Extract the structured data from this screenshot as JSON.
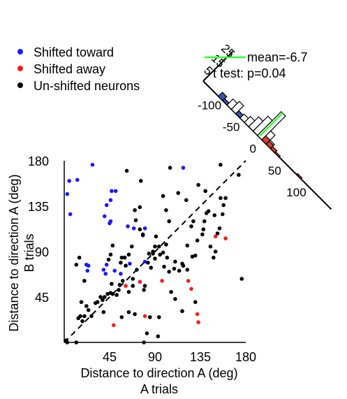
{
  "chart_data": {
    "type": "scatter",
    "xlabel_lines": [
      "Distance to direction A (deg)",
      "A trials"
    ],
    "ylabel_lines": [
      "Distance to direction A (deg)",
      "B trials"
    ],
    "xlim": [
      0,
      180
    ],
    "ylim": [
      0,
      180
    ],
    "x_ticks": [
      45,
      90,
      135,
      180
    ],
    "y_ticks": [
      45,
      90,
      135,
      180
    ],
    "diagonal": "dashed unity line",
    "legend": [
      {
        "label": "Shifted toward",
        "color": "#1a1aff"
      },
      {
        "label": "Shifted away",
        "color": "#ff1a1a"
      },
      {
        "label": "Un-shifted neurons",
        "color": "#000000"
      }
    ],
    "series": [
      {
        "color": "#1a1aff",
        "points": [
          [
            3,
            147
          ],
          [
            6,
            127
          ],
          [
            5,
            160
          ],
          [
            13,
            161
          ],
          [
            28,
            176
          ],
          [
            40,
            125
          ],
          [
            42,
            136
          ],
          [
            46,
            141
          ],
          [
            47,
            150
          ],
          [
            51,
            150
          ],
          [
            45,
            118
          ],
          [
            46,
            120
          ],
          [
            63,
            115
          ],
          [
            69,
            113
          ],
          [
            80,
            113
          ],
          [
            80,
            80
          ],
          [
            78,
            106
          ],
          [
            65,
            78
          ],
          [
            42,
            77
          ],
          [
            39,
            72
          ],
          [
            22,
            77
          ],
          [
            23,
            71
          ],
          [
            24,
            76
          ],
          [
            41,
            68
          ],
          [
            50,
            71
          ],
          [
            56,
            68
          ],
          [
            118,
            173
          ]
        ]
      },
      {
        "color": "#ff1a1a",
        "points": [
          [
            61,
            56
          ],
          [
            75,
            60
          ],
          [
            97,
            61
          ],
          [
            123,
            61
          ],
          [
            126,
            53
          ],
          [
            150,
            105
          ],
          [
            160,
            103
          ],
          [
            80,
            26
          ],
          [
            133,
            20
          ],
          [
            132,
            28
          ],
          [
            49,
            17
          ]
        ]
      },
      {
        "color": "#000000",
        "points": [
          [
            2,
            2
          ],
          [
            3,
            0
          ],
          [
            12,
            0
          ],
          [
            14,
            24
          ],
          [
            16,
            26
          ],
          [
            18,
            21
          ],
          [
            20,
            26
          ],
          [
            27,
            26
          ],
          [
            17,
            40
          ],
          [
            22,
            36
          ],
          [
            24,
            32
          ],
          [
            31,
            39
          ],
          [
            33,
            40
          ],
          [
            36,
            45
          ],
          [
            38,
            42
          ],
          [
            40,
            45
          ],
          [
            43,
            48
          ],
          [
            46,
            49
          ],
          [
            48,
            48
          ],
          [
            52,
            47
          ],
          [
            55,
            57
          ],
          [
            47,
            58
          ],
          [
            58,
            61
          ],
          [
            64,
            50
          ],
          [
            68,
            56
          ],
          [
            54,
            52
          ],
          [
            39,
            30
          ],
          [
            57,
            25
          ],
          [
            64,
            30
          ],
          [
            79,
            52
          ],
          [
            80,
            56
          ],
          [
            68,
            63
          ],
          [
            72,
            72
          ],
          [
            83,
            79
          ],
          [
            86,
            74
          ],
          [
            88,
            90
          ],
          [
            90,
            95
          ],
          [
            94,
            95
          ],
          [
            88,
            88
          ],
          [
            90,
            83
          ],
          [
            95,
            87
          ],
          [
            101,
            97
          ],
          [
            98,
            89
          ],
          [
            102,
            84
          ],
          [
            84,
            88
          ],
          [
            99,
            75
          ],
          [
            104,
            70
          ],
          [
            110,
            80
          ],
          [
            109,
            73
          ],
          [
            114,
            71
          ],
          [
            117,
            78
          ],
          [
            122,
            96
          ],
          [
            126,
            115
          ],
          [
            128,
            120
          ],
          [
            132,
            101
          ],
          [
            137,
            107
          ],
          [
            138,
            112
          ],
          [
            139,
            120
          ],
          [
            141,
            128
          ],
          [
            143,
            130
          ],
          [
            149,
            126
          ],
          [
            152,
            108
          ],
          [
            154,
            113
          ],
          [
            157,
            127
          ],
          [
            158,
            136
          ],
          [
            160,
            143
          ],
          [
            150,
            90
          ],
          [
            148,
            84
          ],
          [
            145,
            95
          ],
          [
            130,
            86
          ],
          [
            127,
            85
          ],
          [
            118,
            76
          ],
          [
            122,
            72
          ],
          [
            117,
            31
          ],
          [
            130,
            40
          ],
          [
            104,
            120
          ],
          [
            91,
            105
          ],
          [
            78,
            107
          ],
          [
            75,
            112
          ],
          [
            71,
            121
          ],
          [
            70,
            131
          ],
          [
            75,
            134
          ],
          [
            67,
            95
          ],
          [
            64,
            87
          ],
          [
            60,
            84
          ],
          [
            61,
            76
          ],
          [
            56,
            79
          ],
          [
            57,
            84
          ],
          [
            48,
            96
          ],
          [
            46,
            87
          ],
          [
            44,
            82
          ],
          [
            98,
            145
          ],
          [
            101,
            131
          ],
          [
            113,
            148
          ],
          [
            121,
            141
          ],
          [
            140,
            150
          ],
          [
            155,
            143
          ],
          [
            133,
            156
          ],
          [
            76,
            160
          ],
          [
            62,
            170
          ],
          [
            105,
            173
          ],
          [
            155,
            176
          ],
          [
            173,
            166
          ],
          [
            176,
            63
          ],
          [
            20,
            61
          ],
          [
            12,
            77
          ],
          [
            15,
            84
          ],
          [
            94,
            25
          ],
          [
            93,
            6
          ],
          [
            79,
            0
          ],
          [
            82,
            9
          ],
          [
            70,
            28
          ],
          [
            85,
            25
          ],
          [
            106,
            50
          ],
          [
            110,
            43
          ]
        ]
      }
    ],
    "histogram": {
      "orientation": "rotated along the unity diagonal",
      "count_ticks": [
        5,
        15,
        25
      ],
      "bin_ticks": [
        -100,
        -50,
        0,
        50,
        100
      ],
      "bins": [
        {
          "center": -95,
          "count": 4,
          "color": "#3f51b5"
        },
        {
          "center": -85,
          "count": 2,
          "color": "#3f51b5"
        },
        {
          "center": -75,
          "count": 2,
          "color": "#3f51b5"
        },
        {
          "center": -65,
          "count": 3,
          "color": "#3f51b5"
        },
        {
          "center": -55,
          "count": 3,
          "color": "#3f51b5"
        },
        {
          "center": -45,
          "count": 3,
          "color": "#3f51b5"
        },
        {
          "center": -35,
          "count": 3,
          "color": "#3f51b5"
        },
        {
          "center": -25,
          "count": 5,
          "color": "#3f51b5"
        },
        {
          "center": -15,
          "count": 5,
          "color": "#3f51b5"
        },
        {
          "center": -75,
          "count": 6,
          "color": "#ffffff"
        },
        {
          "center": -65,
          "count": 8,
          "color": "#ffffff"
        },
        {
          "center": -45,
          "count": 4,
          "color": "#ffffff"
        },
        {
          "center": -35,
          "count": 6,
          "color": "#ffffff"
        },
        {
          "center": -25,
          "count": 10,
          "color": "#ffffff"
        },
        {
          "center": -15,
          "count": 15,
          "color": "#ffffff"
        },
        {
          "center": -5,
          "count": 24,
          "color": "#ffffff"
        },
        {
          "center": 5,
          "count": 9,
          "color": "#ffffff"
        },
        {
          "center": 15,
          "count": 4,
          "color": "#ffffff"
        },
        {
          "center": 25,
          "count": 1,
          "color": "#ffffff"
        },
        {
          "center": 5,
          "count": 4,
          "color": "#e53935"
        },
        {
          "center": 15,
          "count": 3,
          "color": "#e53935"
        },
        {
          "center": 25,
          "count": 2,
          "color": "#e53935"
        },
        {
          "center": 35,
          "count": 1,
          "color": "#e53935"
        },
        {
          "center": 85,
          "count": 1,
          "color": "#e53935"
        }
      ],
      "mean_line": {
        "label": "mean=-6.7",
        "value": -6.7,
        "color": "#33ff33"
      },
      "ttest_label": "t test: p=0.04"
    }
  }
}
